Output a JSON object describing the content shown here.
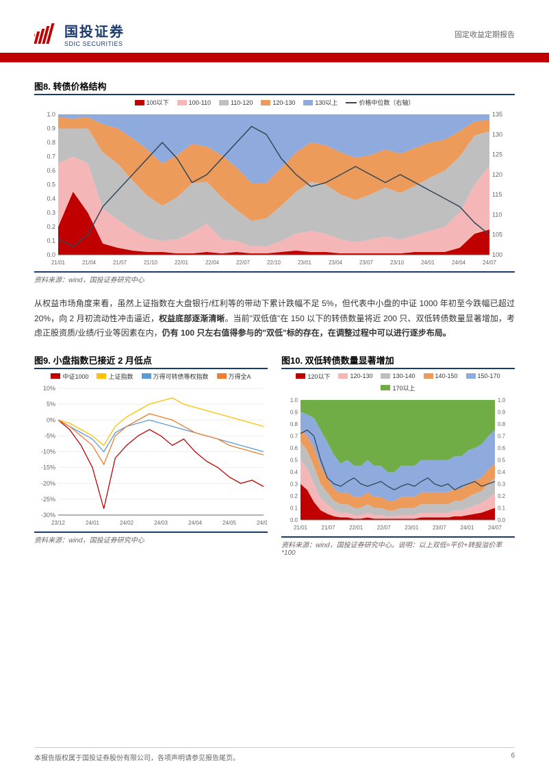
{
  "header": {
    "logo_cn": "国投证券",
    "logo_en": "SDIC SECURITIES",
    "category": "固定收益定期报告"
  },
  "fig8": {
    "title": "图8. 转债价格结构",
    "legend": [
      {
        "label": "100以下",
        "color": "#c00000"
      },
      {
        "label": "100-110",
        "color": "#f4b6b6"
      },
      {
        "label": "110-120",
        "color": "#bfbfbf"
      },
      {
        "label": "120-130",
        "color": "#ed9b5a"
      },
      {
        "label": "130以上",
        "color": "#8faadc"
      },
      {
        "label": "价格中位数（右轴）",
        "color": "#2f4858",
        "line": true
      }
    ],
    "xaxis": [
      "21/01",
      "21/04",
      "21/07",
      "21/10",
      "22/01",
      "22/04",
      "22/07",
      "22/10",
      "23/01",
      "23/04",
      "23/07",
      "23/10",
      "24/01",
      "24/04",
      "24/07"
    ],
    "yaxis_left": {
      "min": 0,
      "max": 1,
      "step": 0.1
    },
    "yaxis_right": {
      "min": 100,
      "max": 135,
      "step": 5
    },
    "source": "资料来源：wind，国投证券研究中心",
    "colors": {
      "bg": "#ffffff",
      "grid": "#e8e8e8",
      "axis": "#666"
    },
    "stack": {
      "s1": [
        0.2,
        0.45,
        0.3,
        0.08,
        0.05,
        0.03,
        0.02,
        0.02,
        0.01,
        0.01,
        0.02,
        0.01,
        0.02,
        0.01,
        0.01,
        0.02,
        0.03,
        0.02,
        0.02,
        0.01,
        0.01,
        0.01,
        0.01,
        0.01,
        0.02,
        0.02,
        0.02,
        0.05,
        0.15,
        0.18
      ],
      "s2": [
        0.45,
        0.25,
        0.35,
        0.25,
        0.2,
        0.15,
        0.1,
        0.08,
        0.1,
        0.15,
        0.2,
        0.1,
        0.08,
        0.05,
        0.05,
        0.08,
        0.12,
        0.15,
        0.13,
        0.1,
        0.08,
        0.1,
        0.12,
        0.1,
        0.12,
        0.15,
        0.18,
        0.25,
        0.35,
        0.45
      ],
      "s3": [
        0.25,
        0.2,
        0.25,
        0.4,
        0.4,
        0.35,
        0.3,
        0.25,
        0.3,
        0.35,
        0.3,
        0.3,
        0.22,
        0.18,
        0.2,
        0.25,
        0.3,
        0.35,
        0.35,
        0.32,
        0.3,
        0.32,
        0.35,
        0.33,
        0.35,
        0.38,
        0.4,
        0.4,
        0.35,
        0.25
      ],
      "s4": [
        0.08,
        0.07,
        0.08,
        0.2,
        0.25,
        0.3,
        0.33,
        0.3,
        0.3,
        0.28,
        0.25,
        0.3,
        0.3,
        0.27,
        0.25,
        0.27,
        0.28,
        0.28,
        0.28,
        0.3,
        0.3,
        0.28,
        0.27,
        0.28,
        0.27,
        0.25,
        0.22,
        0.18,
        0.1,
        0.08
      ],
      "s5": [
        0.02,
        0.03,
        0.02,
        0.07,
        0.1,
        0.17,
        0.25,
        0.35,
        0.29,
        0.21,
        0.23,
        0.29,
        0.38,
        0.49,
        0.49,
        0.38,
        0.27,
        0.2,
        0.22,
        0.27,
        0.31,
        0.29,
        0.25,
        0.28,
        0.24,
        0.2,
        0.18,
        0.12,
        0.05,
        0.04
      ]
    },
    "median": [
      104,
      102,
      105,
      112,
      116,
      120,
      124,
      128,
      124,
      118,
      120,
      124,
      128,
      132,
      130,
      124,
      120,
      117,
      118,
      120,
      122,
      120,
      118,
      120,
      118,
      116,
      114,
      112,
      108,
      105
    ]
  },
  "paragraph": {
    "text": "从权益市场角度来看，虽然上证指数在大盘银行/红利等的带动下累计跌幅不足 5%，但代表中小盘的中证 1000 年初至今跌幅已超过 20%，向 2 月初流动性冲击逼近，",
    "bold1": "权益底部逐渐清晰",
    "text2": "。当前\"双低值\"在 150 以下的转债数量将近 200 只、双低转债数量显著增加，考虑正股资质/业绩/行业等因素在内，",
    "bold2": "仍有 100 只左右值得参与的\"双低\"标的存在，在调整过程中可以进行逐步布局。"
  },
  "fig9": {
    "title": "图9. 小盘指数已接近 2 月低点",
    "legend": [
      {
        "label": "中证1000",
        "color": "#c00000"
      },
      {
        "label": "上证指数",
        "color": "#ffc000"
      },
      {
        "label": "万得可转债等权指数",
        "color": "#5b9bd5"
      },
      {
        "label": "万得全A",
        "color": "#ed7d31"
      }
    ],
    "xaxis": [
      "23/12",
      "24/01",
      "24/02",
      "24/03",
      "24/04",
      "24/05",
      "24/06"
    ],
    "yaxis": {
      "min": -30,
      "max": 10,
      "step": 5,
      "fmt": "%"
    },
    "source": "资料来源：wind，国投证券研究中心",
    "series": {
      "zz1000": [
        0,
        -3,
        -8,
        -15,
        -28,
        -12,
        -8,
        -5,
        -3,
        -5,
        -8,
        -6,
        -10,
        -13,
        -15,
        -18,
        -20,
        -19,
        -21
      ],
      "sz": [
        0,
        -1,
        -3,
        -5,
        -8,
        -2,
        1,
        3,
        5,
        6,
        7,
        5,
        4,
        3,
        2,
        1,
        0,
        -1,
        -2
      ],
      "wdcb": [
        0,
        -2,
        -4,
        -6,
        -10,
        -4,
        -2,
        -1,
        0,
        -1,
        -2,
        -3,
        -4,
        -5,
        -6,
        -7,
        -8,
        -9,
        -10
      ],
      "wdqa": [
        0,
        -2,
        -5,
        -8,
        -14,
        -5,
        -2,
        0,
        2,
        1,
        0,
        -2,
        -4,
        -5,
        -6,
        -8,
        -9,
        -10,
        -11
      ]
    }
  },
  "fig10": {
    "title": "图10. 双低转债数量显著增加",
    "legend": [
      {
        "label": "120以下",
        "color": "#c00000"
      },
      {
        "label": "120-130",
        "color": "#f4b6b6"
      },
      {
        "label": "130-140",
        "color": "#bfbfbf"
      },
      {
        "label": "140-150",
        "color": "#ed9b5a"
      },
      {
        "label": "150-170",
        "color": "#8faadc"
      },
      {
        "label": "170以上",
        "color": "#70ad47"
      }
    ],
    "xaxis": [
      "21/01",
      "21/07",
      "22/01",
      "22/07",
      "23/01",
      "23/07",
      "24/01",
      "24/07"
    ],
    "yaxis": {
      "min": 0,
      "max": 1,
      "step": 0.1
    },
    "source": "资料来源：wind，国投证券研究中心。说明：以上双低=平价+转股溢价率*100",
    "line": [
      0.72,
      0.75,
      0.7,
      0.5,
      0.35,
      0.3,
      0.28,
      0.32,
      0.35,
      0.3,
      0.28,
      0.3,
      0.32,
      0.28,
      0.25,
      0.28,
      0.3,
      0.28,
      0.32,
      0.35,
      0.3,
      0.28,
      0.3,
      0.25,
      0.28,
      0.3,
      0.32,
      0.28,
      0.3,
      0.32
    ],
    "stack": {
      "s1": [
        0.3,
        0.25,
        0.15,
        0.08,
        0.05,
        0.03,
        0.02,
        0.02,
        0.01,
        0.01,
        0.02,
        0.01,
        0.01,
        0.01,
        0.01,
        0.01,
        0.01,
        0.01,
        0.02,
        0.02,
        0.02,
        0.02,
        0.02,
        0.03,
        0.03,
        0.04,
        0.05,
        0.06,
        0.08,
        0.1
      ],
      "s2": [
        0.2,
        0.18,
        0.15,
        0.1,
        0.08,
        0.05,
        0.04,
        0.04,
        0.03,
        0.03,
        0.04,
        0.03,
        0.03,
        0.02,
        0.02,
        0.03,
        0.03,
        0.03,
        0.04,
        0.04,
        0.04,
        0.04,
        0.04,
        0.05,
        0.05,
        0.06,
        0.07,
        0.08,
        0.1,
        0.12
      ],
      "s3": [
        0.15,
        0.15,
        0.15,
        0.12,
        0.1,
        0.08,
        0.07,
        0.07,
        0.06,
        0.06,
        0.07,
        0.06,
        0.06,
        0.05,
        0.05,
        0.06,
        0.06,
        0.06,
        0.07,
        0.07,
        0.07,
        0.07,
        0.07,
        0.08,
        0.08,
        0.09,
        0.1,
        0.1,
        0.12,
        0.13
      ],
      "s4": [
        0.1,
        0.12,
        0.15,
        0.15,
        0.12,
        0.1,
        0.09,
        0.1,
        0.09,
        0.09,
        0.1,
        0.09,
        0.09,
        0.08,
        0.08,
        0.09,
        0.09,
        0.09,
        0.1,
        0.1,
        0.1,
        0.1,
        0.1,
        0.1,
        0.1,
        0.11,
        0.11,
        0.11,
        0.12,
        0.12
      ],
      "s5": [
        0.15,
        0.18,
        0.25,
        0.3,
        0.3,
        0.28,
        0.25,
        0.27,
        0.26,
        0.26,
        0.27,
        0.26,
        0.26,
        0.24,
        0.24,
        0.26,
        0.26,
        0.26,
        0.27,
        0.27,
        0.27,
        0.27,
        0.27,
        0.27,
        0.27,
        0.28,
        0.27,
        0.28,
        0.28,
        0.28
      ],
      "s6": [
        0.1,
        0.12,
        0.15,
        0.25,
        0.35,
        0.46,
        0.53,
        0.5,
        0.55,
        0.55,
        0.5,
        0.55,
        0.55,
        0.6,
        0.6,
        0.55,
        0.55,
        0.55,
        0.5,
        0.5,
        0.5,
        0.5,
        0.5,
        0.47,
        0.47,
        0.42,
        0.4,
        0.37,
        0.3,
        0.25
      ]
    }
  },
  "footer": {
    "left": "本报告版权属于国投证券股份有限公司，各项声明请参见报告尾页。",
    "page": "6"
  }
}
